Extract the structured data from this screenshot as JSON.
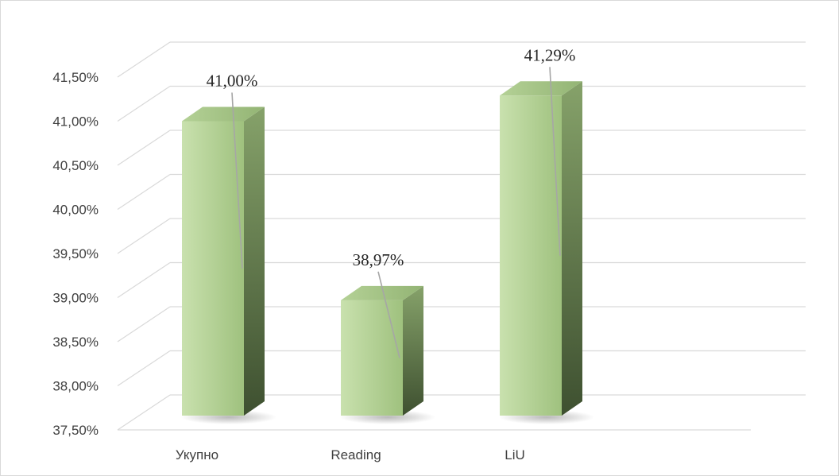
{
  "chart_data": {
    "type": "bar",
    "style": "3d-column",
    "categories": [
      "Укупно",
      "Reading",
      "LiU"
    ],
    "values": [
      41.0,
      38.97,
      41.29
    ],
    "data_labels": [
      "41,00%",
      "38,97%",
      "41,29%"
    ],
    "y_ticks": [
      "37,50%",
      "38,00%",
      "38,50%",
      "39,00%",
      "39,50%",
      "40,00%",
      "40,50%",
      "41,00%",
      "41,50%"
    ],
    "ylim": [
      37.5,
      41.5
    ],
    "grid": true,
    "legend": "none",
    "title": "",
    "xlabel": "",
    "ylabel": ""
  },
  "colors": {
    "bar_front_light": "#c5deaa",
    "bar_front_dark": "#9cbf7a",
    "bar_side_light": "#7f9a63",
    "bar_side_dark": "#3f5330",
    "bar_top": "#a9c98c",
    "gridline": "#d9d9d9",
    "axis_text": "#404040",
    "label_text": "#262626",
    "leader_line": "#a6a6a6"
  }
}
